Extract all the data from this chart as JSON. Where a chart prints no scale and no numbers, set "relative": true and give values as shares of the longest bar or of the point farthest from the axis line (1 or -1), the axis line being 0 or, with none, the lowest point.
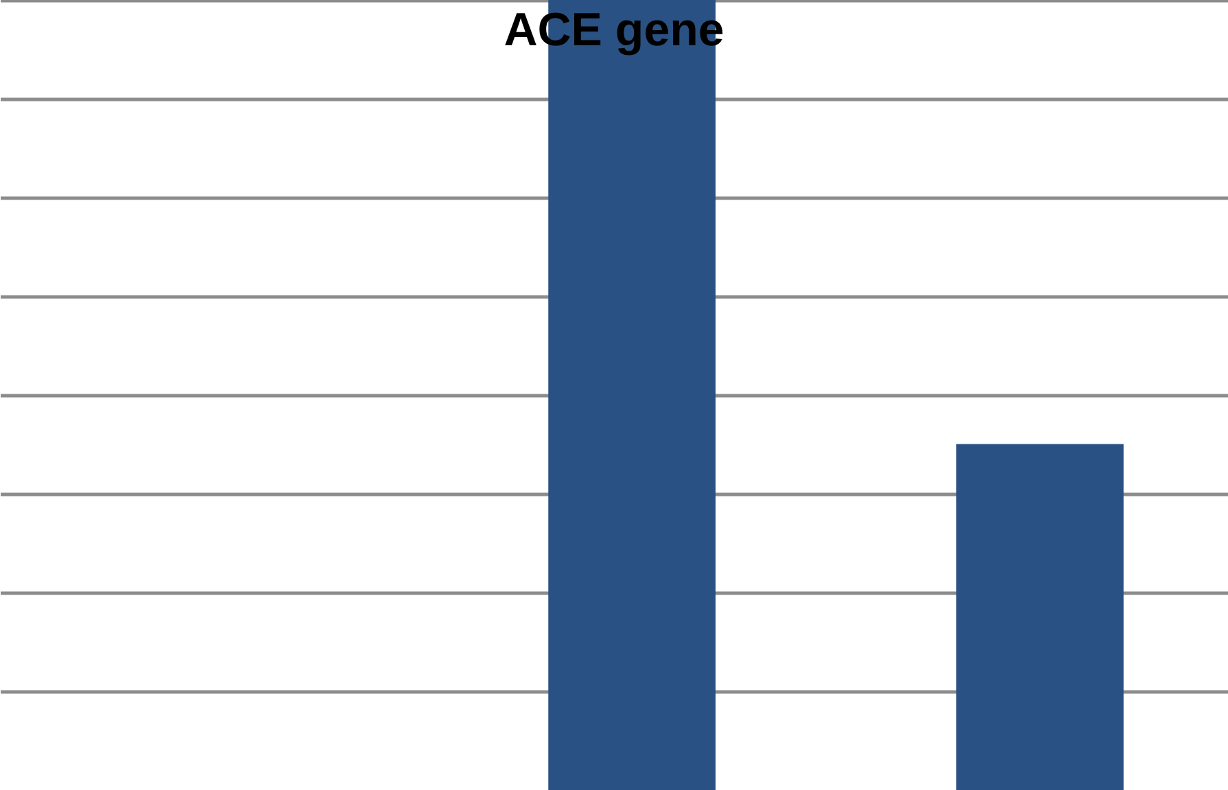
{
  "chart_data": {
    "type": "bar",
    "title": "ACE gene",
    "relative": true,
    "categories": [
      null,
      null
    ],
    "values": [
      1,
      0.438
    ],
    "color": "#2a5183",
    "grid": "y",
    "tick_labels": false
  }
}
